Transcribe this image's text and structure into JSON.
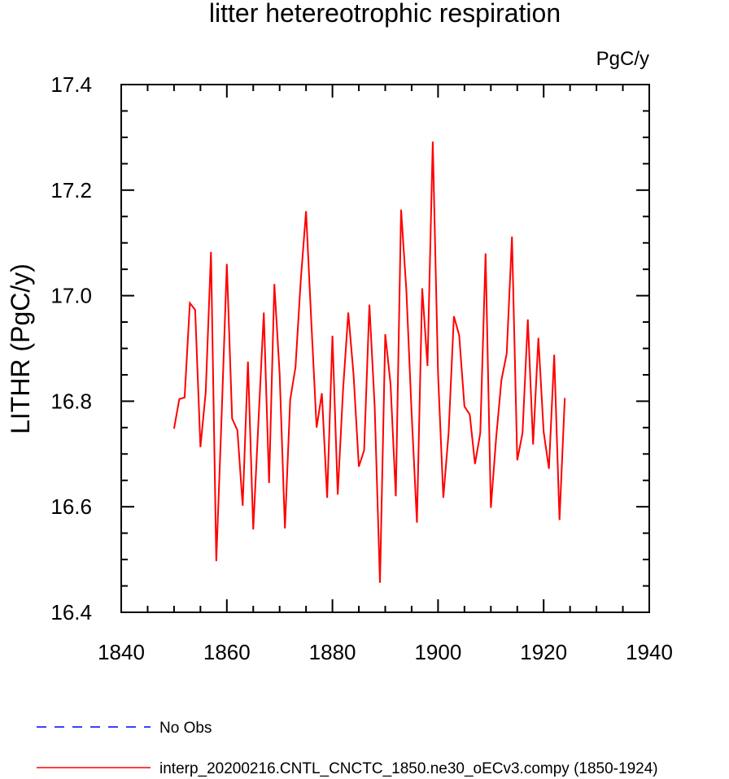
{
  "chart_data": {
    "type": "line",
    "title": "litter hetereotrophic respiration",
    "units_label": "PgC/y",
    "ylabel": "LITHR  (PgC/y)",
    "xlabel": "",
    "xlim": [
      1840,
      1940
    ],
    "ylim": [
      16.4,
      17.4
    ],
    "x_ticks": [
      1840,
      1860,
      1880,
      1900,
      1920,
      1940
    ],
    "y_ticks": [
      "16.4",
      "16.6",
      "16.8",
      "17.0",
      "17.2",
      "17.4"
    ],
    "grid": false,
    "series": [
      {
        "name": "interp_20200216.CNTL_CNCTC_1850.ne30_oECv3.compy (1850-1924)",
        "color": "#ff0000",
        "x": [
          1850,
          1851,
          1852,
          1853,
          1854,
          1855,
          1856,
          1857,
          1858,
          1859,
          1860,
          1861,
          1862,
          1863,
          1864,
          1865,
          1866,
          1867,
          1868,
          1869,
          1870,
          1871,
          1872,
          1873,
          1874,
          1875,
          1876,
          1877,
          1878,
          1879,
          1880,
          1881,
          1882,
          1883,
          1884,
          1885,
          1886,
          1887,
          1888,
          1889,
          1890,
          1891,
          1892,
          1893,
          1894,
          1895,
          1896,
          1897,
          1898,
          1899,
          1900,
          1901,
          1902,
          1903,
          1904,
          1905,
          1906,
          1907,
          1908,
          1909,
          1910,
          1911,
          1912,
          1913,
          1914,
          1915,
          1916,
          1917,
          1918,
          1919,
          1920,
          1921,
          1922,
          1923,
          1924
        ],
        "values": [
          16.748,
          16.804,
          16.807,
          16.986,
          16.973,
          16.713,
          16.817,
          17.083,
          16.497,
          16.768,
          17.06,
          16.767,
          16.745,
          16.602,
          16.875,
          16.557,
          16.764,
          16.968,
          16.645,
          17.022,
          16.852,
          16.559,
          16.803,
          16.864,
          17.029,
          17.16,
          16.95,
          16.75,
          16.815,
          16.617,
          16.924,
          16.623,
          16.82,
          16.968,
          16.85,
          16.676,
          16.707,
          16.983,
          16.79,
          16.456,
          16.927,
          16.833,
          16.62,
          17.163,
          17.01,
          16.776,
          16.57,
          17.014,
          16.867,
          17.292,
          16.852,
          16.617,
          16.74,
          16.961,
          16.925,
          16.79,
          16.775,
          16.681,
          16.74,
          17.08,
          16.598,
          16.73,
          16.84,
          16.89,
          17.112,
          16.688,
          16.74,
          16.955,
          16.718,
          16.92,
          16.742,
          16.672,
          16.888,
          16.575,
          16.806
        ]
      }
    ],
    "legend": {
      "placement": "bottom",
      "entries": [
        {
          "label": "No Obs",
          "color": "#0000ff",
          "style": "dashed"
        },
        {
          "label": "interp_20200216.CNTL_CNCTC_1850.ne30_oECv3.compy (1850-1924)",
          "color": "#ff0000",
          "style": "solid"
        }
      ]
    }
  }
}
